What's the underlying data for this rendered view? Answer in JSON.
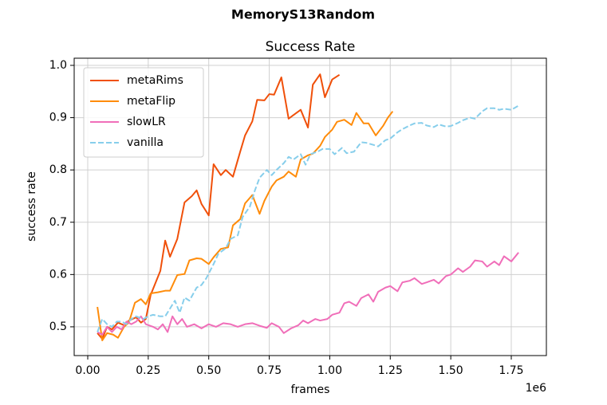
{
  "chart_data": {
    "type": "line",
    "title": "MemoryS13Random",
    "subtitle": "Success Rate",
    "xlabel": "frames",
    "ylabel": "success rate",
    "x_offset_label": "1e6",
    "xlim": [
      -0.056,
      1.895
    ],
    "ylim": [
      0.445,
      1.0137
    ],
    "xticks": [
      {
        "value": 0,
        "label": "0.00"
      },
      0.25,
      {
        "value": 0.5,
        "label": "0.50"
      },
      0.75,
      {
        "value": 1,
        "label": "1.00"
      },
      1.25,
      {
        "value": 1.5,
        "label": "1.50"
      },
      1.75
    ],
    "yticks": [
      0.5,
      0.6,
      0.7,
      0.8,
      0.9,
      {
        "value": 1,
        "label": "1.0"
      }
    ],
    "grid": true,
    "legend": "upper left",
    "series": [
      {
        "name": "metaRims",
        "color": "#f0500a",
        "linestyle": "solid",
        "x": [
          0.04,
          0.06,
          0.08,
          0.1,
          0.125,
          0.15,
          0.17,
          0.2,
          0.22,
          0.24,
          0.26,
          0.3,
          0.32,
          0.34,
          0.37,
          0.4,
          0.43,
          0.45,
          0.47,
          0.5,
          0.52,
          0.55,
          0.57,
          0.6,
          0.63,
          0.65,
          0.68,
          0.7,
          0.73,
          0.75,
          0.77,
          0.8,
          0.83,
          0.85,
          0.88,
          0.91,
          0.93,
          0.96,
          0.98,
          1.01,
          1.04
        ],
        "values": [
          0.488,
          0.477,
          0.5,
          0.495,
          0.508,
          0.503,
          0.512,
          0.518,
          0.508,
          0.515,
          0.561,
          0.607,
          0.665,
          0.634,
          0.668,
          0.738,
          0.75,
          0.761,
          0.735,
          0.713,
          0.811,
          0.79,
          0.8,
          0.787,
          0.835,
          0.866,
          0.893,
          0.934,
          0.933,
          0.945,
          0.944,
          0.977,
          0.898,
          0.905,
          0.915,
          0.881,
          0.963,
          0.983,
          0.939,
          0.973,
          0.982
        ]
      },
      {
        "name": "metaFlip",
        "color": "#ff8c0a",
        "linestyle": "solid",
        "x": [
          0.04,
          0.06,
          0.08,
          0.105,
          0.125,
          0.15,
          0.17,
          0.195,
          0.22,
          0.24,
          0.26,
          0.29,
          0.32,
          0.34,
          0.37,
          0.4,
          0.42,
          0.45,
          0.47,
          0.5,
          0.52,
          0.55,
          0.58,
          0.6,
          0.63,
          0.65,
          0.68,
          0.71,
          0.73,
          0.76,
          0.78,
          0.81,
          0.83,
          0.86,
          0.88,
          0.91,
          0.93,
          0.96,
          0.98,
          1.01,
          1.03,
          1.06,
          1.09,
          1.11,
          1.14,
          1.16,
          1.19,
          1.22,
          1.24,
          1.26
        ],
        "values": [
          0.538,
          0.474,
          0.488,
          0.485,
          0.479,
          0.5,
          0.508,
          0.546,
          0.553,
          0.543,
          0.564,
          0.566,
          0.569,
          0.569,
          0.599,
          0.601,
          0.627,
          0.631,
          0.63,
          0.62,
          0.633,
          0.649,
          0.652,
          0.694,
          0.706,
          0.736,
          0.752,
          0.716,
          0.741,
          0.768,
          0.78,
          0.787,
          0.797,
          0.787,
          0.82,
          0.828,
          0.831,
          0.846,
          0.863,
          0.877,
          0.892,
          0.896,
          0.886,
          0.909,
          0.889,
          0.889,
          0.866,
          0.884,
          0.9,
          0.912
        ]
      },
      {
        "name": "slowLR",
        "color": "#f06eb9",
        "linestyle": "solid",
        "x": [
          0.04,
          0.06,
          0.08,
          0.1,
          0.12,
          0.14,
          0.16,
          0.18,
          0.2,
          0.22,
          0.24,
          0.27,
          0.29,
          0.31,
          0.33,
          0.35,
          0.37,
          0.39,
          0.41,
          0.44,
          0.47,
          0.5,
          0.53,
          0.56,
          0.59,
          0.62,
          0.65,
          0.68,
          0.71,
          0.74,
          0.76,
          0.79,
          0.81,
          0.84,
          0.87,
          0.89,
          0.91,
          0.94,
          0.96,
          0.99,
          1.01,
          1.04,
          1.06,
          1.08,
          1.11,
          1.13,
          1.16,
          1.18,
          1.2,
          1.23,
          1.25,
          1.28,
          1.3,
          1.33,
          1.35,
          1.38,
          1.4,
          1.43,
          1.45,
          1.48,
          1.5,
          1.53,
          1.55,
          1.58,
          1.6,
          1.63,
          1.65,
          1.68,
          1.7,
          1.72,
          1.75,
          1.78
        ],
        "values": [
          0.49,
          0.485,
          0.5,
          0.49,
          0.5,
          0.495,
          0.51,
          0.505,
          0.51,
          0.52,
          0.505,
          0.5,
          0.495,
          0.505,
          0.49,
          0.52,
          0.505,
          0.515,
          0.5,
          0.505,
          0.497,
          0.505,
          0.5,
          0.507,
          0.505,
          0.5,
          0.505,
          0.507,
          0.502,
          0.498,
          0.507,
          0.5,
          0.488,
          0.497,
          0.503,
          0.512,
          0.507,
          0.515,
          0.512,
          0.515,
          0.523,
          0.527,
          0.545,
          0.548,
          0.54,
          0.555,
          0.562,
          0.548,
          0.567,
          0.575,
          0.578,
          0.568,
          0.585,
          0.588,
          0.593,
          0.582,
          0.585,
          0.59,
          0.583,
          0.597,
          0.6,
          0.612,
          0.605,
          0.615,
          0.627,
          0.625,
          0.615,
          0.625,
          0.618,
          0.635,
          0.625,
          0.642
        ]
      },
      {
        "name": "vanilla",
        "color": "#87ceeb",
        "linestyle": "dashed",
        "x": [
          0.04,
          0.06,
          0.08,
          0.1,
          0.12,
          0.14,
          0.16,
          0.18,
          0.2,
          0.23,
          0.25,
          0.27,
          0.3,
          0.32,
          0.34,
          0.36,
          0.38,
          0.4,
          0.42,
          0.45,
          0.47,
          0.49,
          0.52,
          0.54,
          0.57,
          0.59,
          0.62,
          0.64,
          0.67,
          0.69,
          0.71,
          0.74,
          0.76,
          0.78,
          0.81,
          0.83,
          0.85,
          0.88,
          0.9,
          0.92,
          0.95,
          0.97,
          1.0,
          1.02,
          1.05,
          1.07,
          1.1,
          1.13,
          1.15,
          1.18,
          1.2,
          1.23,
          1.25,
          1.28,
          1.3,
          1.33,
          1.35,
          1.38,
          1.4,
          1.43,
          1.45,
          1.48,
          1.5,
          1.53,
          1.55,
          1.58,
          1.6,
          1.63,
          1.65,
          1.68,
          1.7,
          1.72,
          1.75,
          1.78
        ],
        "values": [
          0.49,
          0.515,
          0.505,
          0.5,
          0.51,
          0.51,
          0.505,
          0.515,
          0.52,
          0.515,
          0.52,
          0.523,
          0.52,
          0.52,
          0.535,
          0.55,
          0.527,
          0.556,
          0.55,
          0.575,
          0.58,
          0.593,
          0.62,
          0.64,
          0.65,
          0.668,
          0.675,
          0.71,
          0.73,
          0.76,
          0.785,
          0.8,
          0.79,
          0.8,
          0.813,
          0.825,
          0.82,
          0.83,
          0.81,
          0.83,
          0.835,
          0.84,
          0.84,
          0.83,
          0.842,
          0.832,
          0.835,
          0.853,
          0.852,
          0.848,
          0.845,
          0.857,
          0.86,
          0.872,
          0.878,
          0.885,
          0.889,
          0.89,
          0.885,
          0.882,
          0.887,
          0.883,
          0.884,
          0.89,
          0.895,
          0.9,
          0.898,
          0.912,
          0.918,
          0.918,
          0.915,
          0.917,
          0.915,
          0.923
        ]
      }
    ]
  }
}
